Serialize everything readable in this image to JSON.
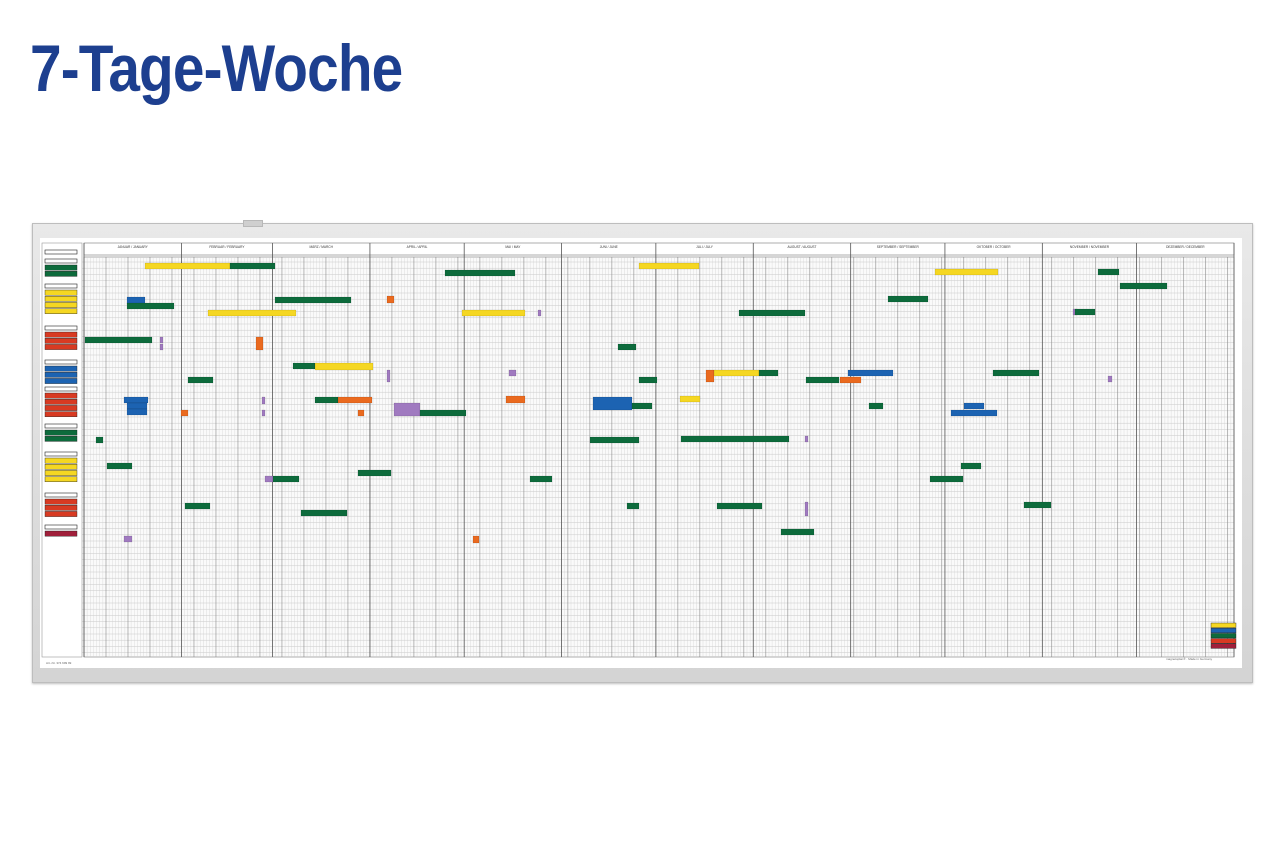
{
  "title": "7-Tage-Woche",
  "board": {
    "months": [
      "JANUAR / JANUARY",
      "FEBRUAR / FEBRUARY",
      "MÄRZ / MARCH",
      "APRIL / APRIL",
      "MAI / MAY",
      "JUNI / JUNE",
      "JULI / JULY",
      "AUGUST / AUGUST",
      "SEPTEMBER / SEPTEMBER",
      "OKTOBER / OCTOBER",
      "NOVEMBER / NOVEMBER",
      "DEZEMBER / DECEMBER"
    ],
    "footer_left": "Art.-Nr. 374 699 99",
    "footer_right": "magnetoplan® · Made in Germany",
    "magnet_colors": {
      "green": "#0d6b3c",
      "yellow": "#f5d722",
      "blue": "#1c63b2",
      "orange": "#ea6a1f",
      "purple": "#a07ac0",
      "red": "#d83a22"
    },
    "legend_colors": [
      "#f5d722",
      "#1c63b2",
      "#0d6b3c",
      "#d83a22",
      "#a01f3a"
    ]
  }
}
